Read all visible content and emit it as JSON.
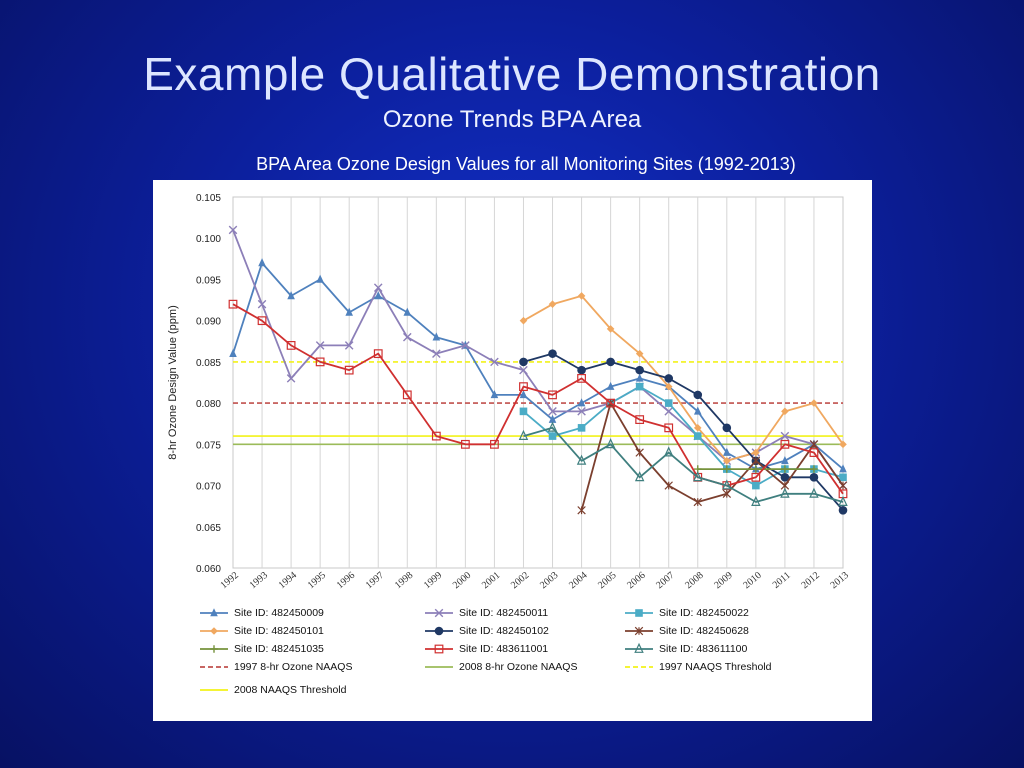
{
  "slide": {
    "title": "Example Qualitative Demonstration",
    "subtitle": "Ozone Trends BPA Area"
  },
  "chart_data": {
    "type": "line",
    "title": "BPA Area Ozone Design Values for all Monitoring Sites (1992-2013)",
    "xlabel": "",
    "ylabel": "8-hr Ozone Design Value (ppm)",
    "ylim": [
      0.06,
      0.105
    ],
    "yticks": [
      "0.060",
      "0.065",
      "0.070",
      "0.075",
      "0.080",
      "0.085",
      "0.090",
      "0.095",
      "0.100",
      "0.105"
    ],
    "grid": "vertical",
    "legend_position": "bottom",
    "categories": [
      "1992",
      "1993",
      "1994",
      "1995",
      "1996",
      "1997",
      "1998",
      "1999",
      "2000",
      "2001",
      "2002",
      "2003",
      "2004",
      "2005",
      "2006",
      "2007",
      "2008",
      "2009",
      "2010",
      "2011",
      "2012",
      "2013"
    ],
    "series": [
      {
        "name": "Site ID:  482450009",
        "color": "#4f81bd",
        "marker": "triangle",
        "values": [
          0.086,
          0.097,
          0.093,
          0.095,
          0.091,
          0.093,
          0.091,
          0.088,
          0.087,
          0.081,
          0.081,
          0.078,
          0.08,
          0.082,
          0.083,
          0.082,
          0.079,
          0.074,
          0.072,
          0.073,
          0.075,
          0.072
        ]
      },
      {
        "name": "Site ID:  482450011",
        "color": "#8c7fb8",
        "marker": "x",
        "values": [
          0.101,
          0.092,
          0.083,
          0.087,
          0.087,
          0.094,
          0.088,
          0.086,
          0.087,
          0.085,
          0.084,
          0.079,
          0.079,
          0.08,
          0.082,
          0.079,
          0.076,
          0.073,
          0.074,
          0.076,
          0.075,
          0.07
        ]
      },
      {
        "name": "Site ID:  482450022",
        "color": "#4bacc6",
        "marker": "square",
        "values": [
          null,
          null,
          null,
          null,
          null,
          null,
          null,
          null,
          null,
          null,
          0.079,
          0.076,
          0.077,
          0.08,
          0.082,
          0.08,
          0.076,
          0.072,
          0.07,
          0.072,
          0.072,
          0.071
        ]
      },
      {
        "name": "Site ID:  482450101",
        "color": "#f0a860",
        "marker": "diamond",
        "values": [
          null,
          null,
          null,
          null,
          null,
          null,
          null,
          null,
          null,
          null,
          0.09,
          0.092,
          0.093,
          0.089,
          0.086,
          0.082,
          0.077,
          0.073,
          0.074,
          0.079,
          0.08,
          0.075
        ]
      },
      {
        "name": "Site ID:  482450102",
        "color": "#1f3864",
        "marker": "circle",
        "values": [
          null,
          null,
          null,
          null,
          null,
          null,
          null,
          null,
          null,
          null,
          0.085,
          0.086,
          0.084,
          0.085,
          0.084,
          0.083,
          0.081,
          0.077,
          0.073,
          0.071,
          0.071,
          0.067
        ]
      },
      {
        "name": "Site ID:  482450628",
        "color": "#7b3f2e",
        "marker": "star",
        "values": [
          null,
          null,
          null,
          null,
          null,
          null,
          null,
          null,
          null,
          null,
          null,
          null,
          0.067,
          0.08,
          0.074,
          0.07,
          0.068,
          0.069,
          0.073,
          0.07,
          0.075,
          0.07
        ]
      },
      {
        "name": "Site ID:  482451035",
        "color": "#76923c",
        "marker": "plus",
        "values": [
          null,
          null,
          null,
          null,
          null,
          null,
          null,
          null,
          null,
          null,
          null,
          null,
          null,
          null,
          null,
          null,
          0.072,
          0.072,
          0.072,
          0.072,
          0.072,
          null
        ]
      },
      {
        "name": "Site ID:  483611001",
        "color": "#d03030",
        "marker": "open-square",
        "values": [
          0.092,
          0.09,
          0.087,
          0.085,
          0.084,
          0.086,
          0.081,
          0.076,
          0.075,
          0.075,
          0.082,
          0.081,
          0.083,
          0.08,
          0.078,
          0.077,
          0.071,
          0.07,
          0.071,
          0.075,
          0.074,
          0.069
        ]
      },
      {
        "name": "Site ID:  483611100",
        "color": "#3f7f7f",
        "marker": "open-triangle",
        "values": [
          null,
          null,
          null,
          null,
          null,
          null,
          null,
          null,
          null,
          null,
          0.076,
          0.077,
          0.073,
          0.075,
          0.071,
          0.074,
          0.071,
          0.07,
          0.068,
          0.069,
          0.069,
          0.068
        ]
      }
    ],
    "reference_lines": [
      {
        "name": "1997 8-hr Ozone NAAQS",
        "value": 0.08,
        "color": "#c0504d",
        "style": "dashed"
      },
      {
        "name": "2008 8-hr Ozone NAAQS",
        "value": 0.075,
        "color": "#9bbb59",
        "style": "solid"
      },
      {
        "name": "1997 NAAQS Threshold",
        "value": 0.085,
        "color": "#f2f21a",
        "style": "dashed"
      },
      {
        "name": "2008 NAAQS Threshold",
        "value": 0.076,
        "color": "#f2f21a",
        "style": "solid"
      }
    ]
  }
}
